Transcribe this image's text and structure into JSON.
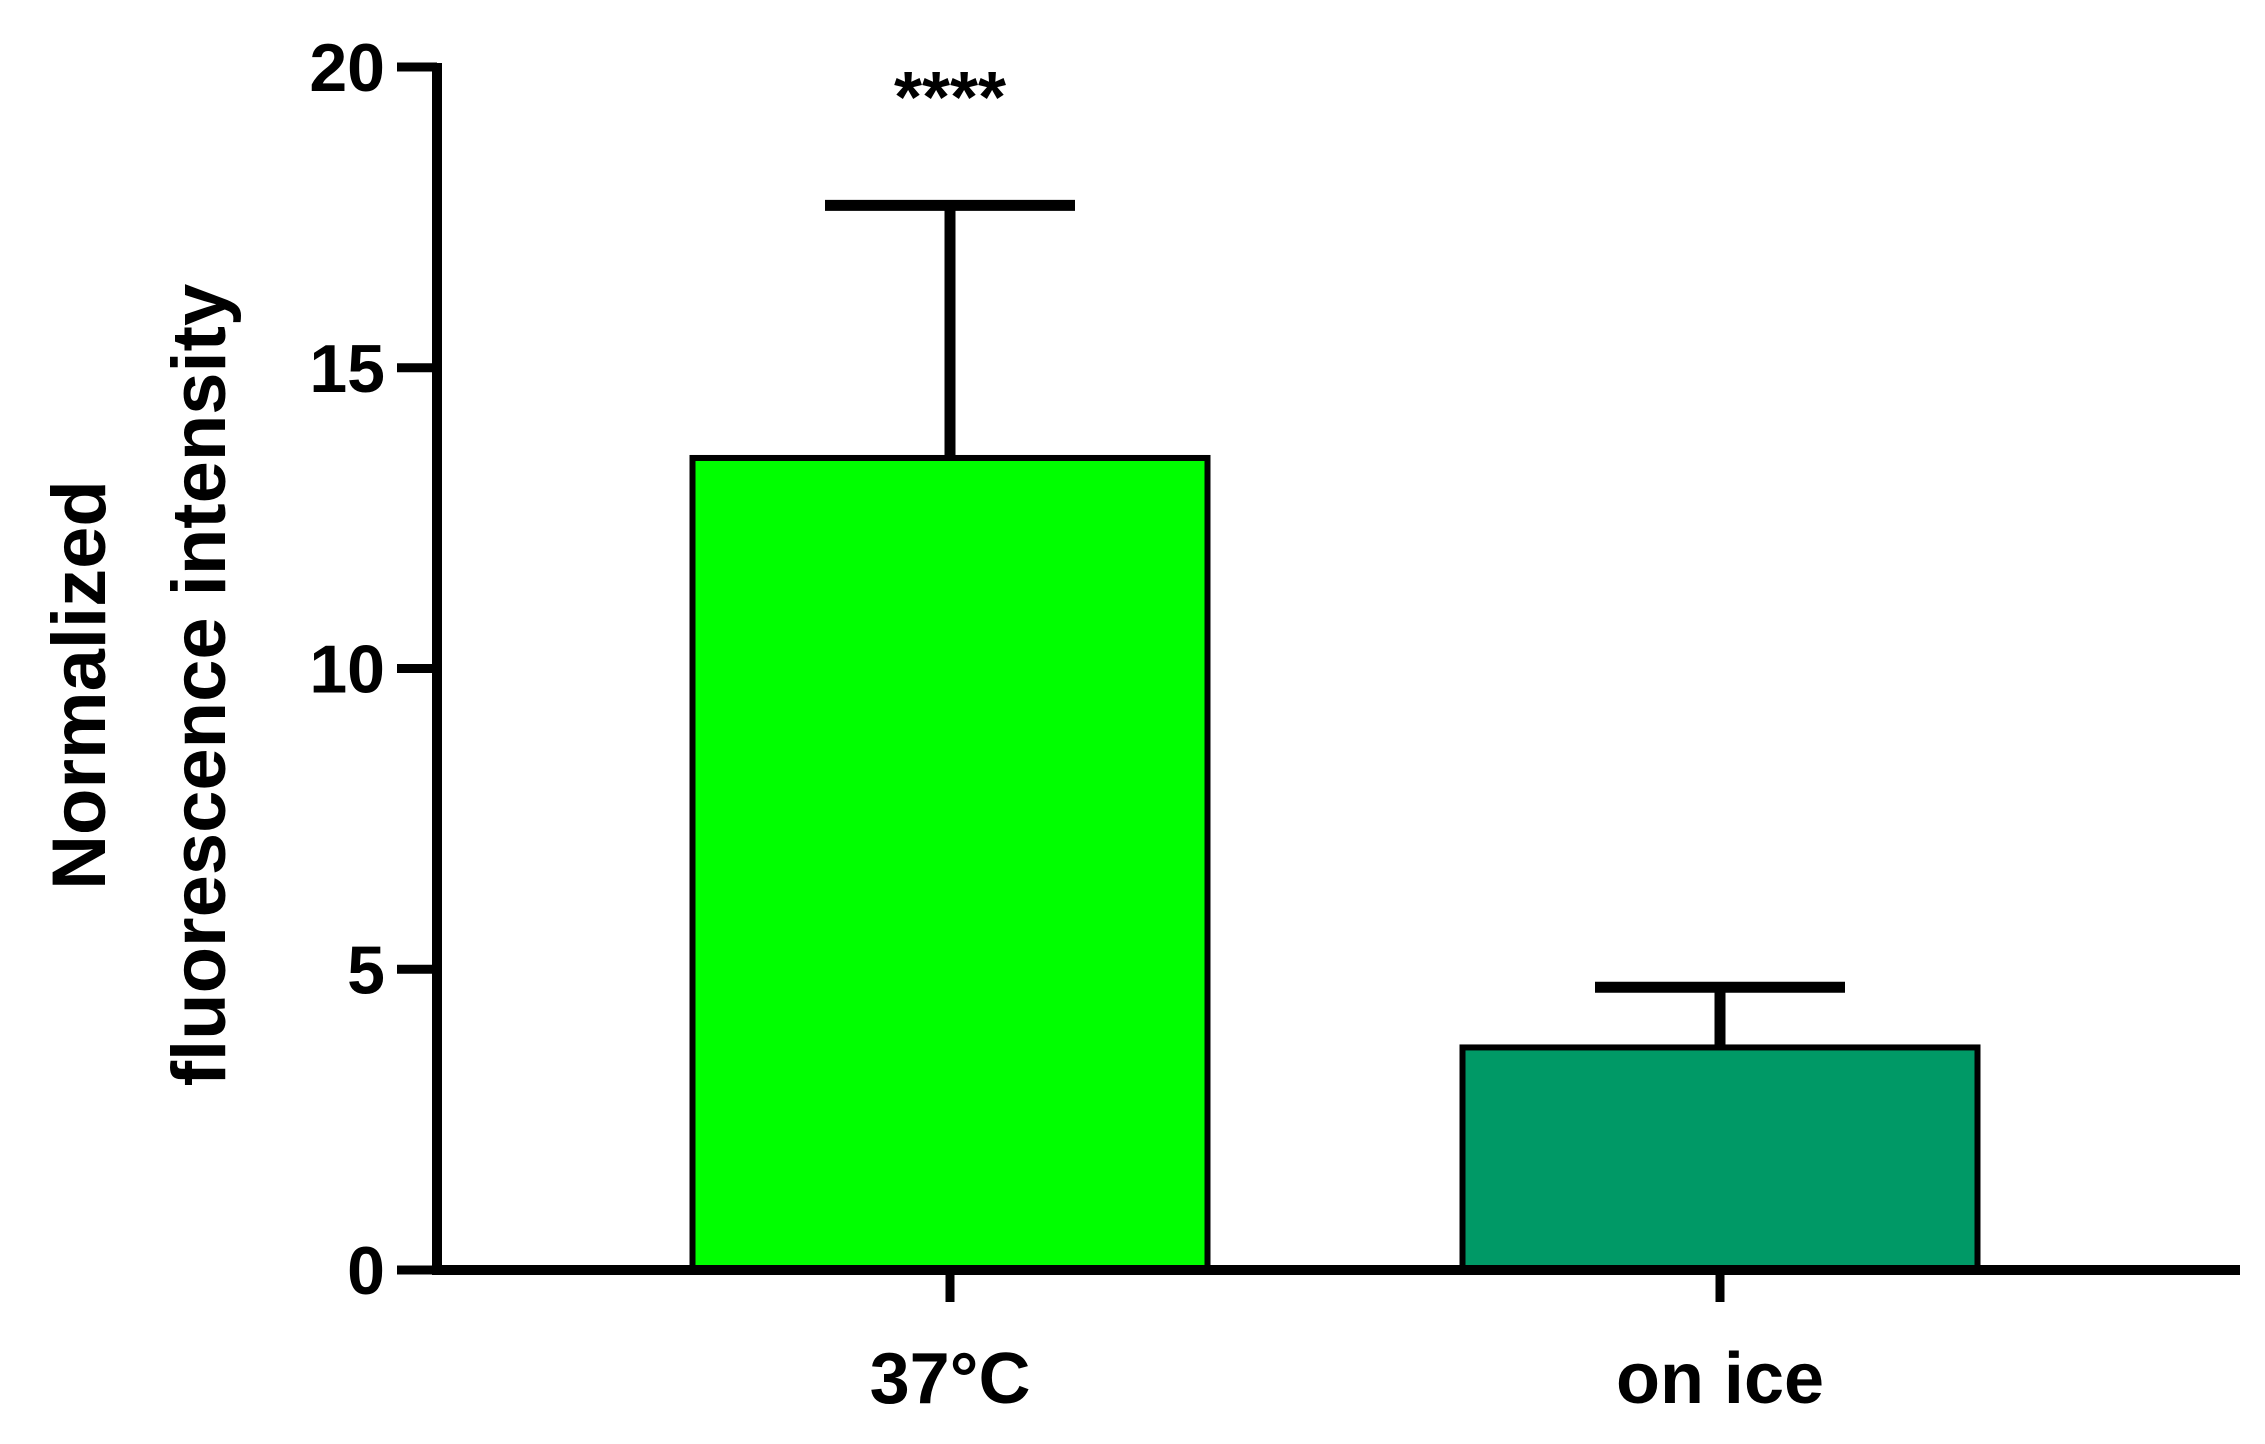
{
  "chart_data": {
    "type": "bar",
    "categories": [
      "37°C",
      "on ice"
    ],
    "values": [
      13.5,
      3.7
    ],
    "error_upper": [
      17.7,
      4.7
    ],
    "colors": [
      "#00ff00",
      "#009966"
    ],
    "ylabel_lines": [
      "Normalized",
      "fluorescence intensity"
    ],
    "xlabel": "",
    "ylim": [
      0,
      20
    ],
    "yticks": [
      0,
      5,
      10,
      15,
      20
    ],
    "grid": false,
    "annotations": [
      {
        "category": "37°C",
        "text": "****"
      }
    ]
  }
}
